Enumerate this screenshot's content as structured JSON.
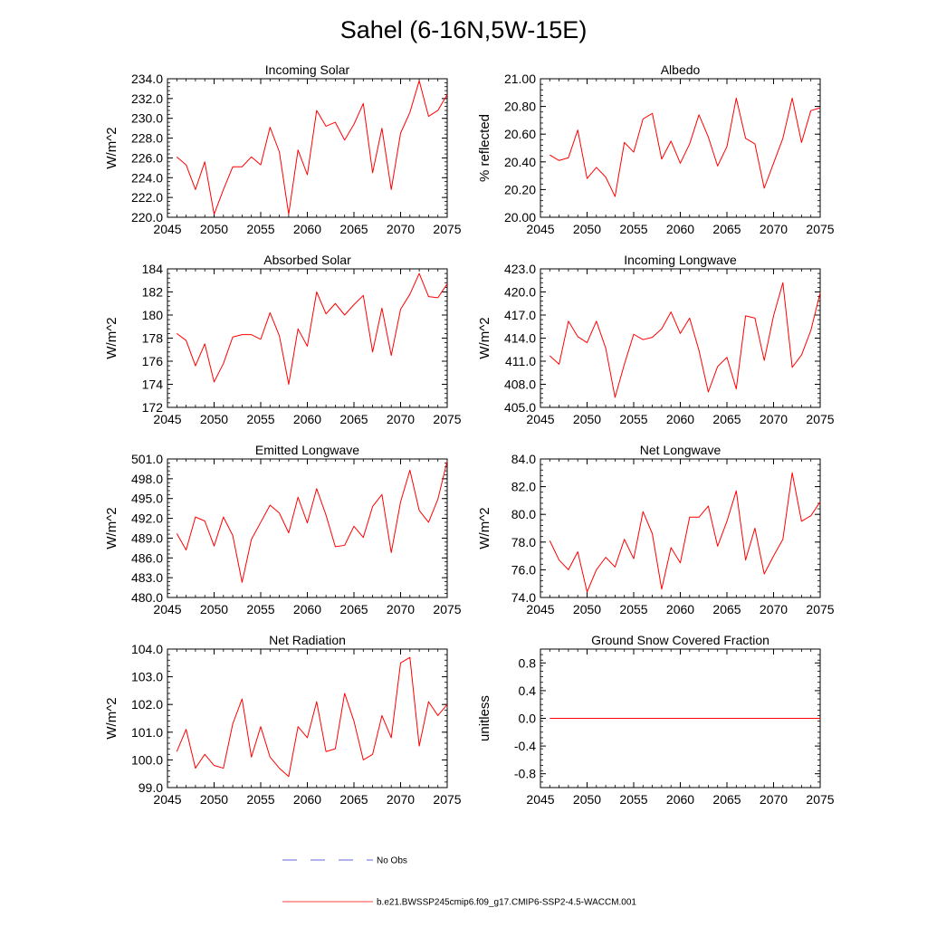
{
  "title": "Sahel (6-16N,5W-15E)",
  "colors": {
    "model": "#ff0000",
    "obs": "#3333cc",
    "axis": "#000000"
  },
  "legend": {
    "obs_label": "No Obs",
    "model_label": "b.e21.BWSSP245cmip6.f09_g17.CMIP6-SSP2-4.5-WACCM.001"
  },
  "chart_data": [
    {
      "type": "line",
      "title": "Incoming Solar",
      "xlabel": "",
      "ylabel": "W/m^2",
      "xlim": [
        2045,
        2075
      ],
      "ylim": [
        220,
        234
      ],
      "xticks": [
        2045,
        2050,
        2055,
        2060,
        2065,
        2070,
        2075
      ],
      "yticks": [
        220,
        222,
        224,
        226,
        228,
        230,
        232,
        234
      ],
      "ydec": 1,
      "x": [
        2046,
        2047,
        2048,
        2049,
        2050,
        2051,
        2052,
        2053,
        2054,
        2055,
        2056,
        2057,
        2058,
        2059,
        2060,
        2061,
        2062,
        2063,
        2064,
        2065,
        2066,
        2067,
        2068,
        2069,
        2070,
        2071,
        2072,
        2073,
        2074,
        2075
      ],
      "values": [
        226.1,
        225.3,
        222.8,
        225.6,
        220.3,
        222.8,
        225.1,
        225.1,
        226.1,
        225.3,
        229.1,
        226.6,
        220.3,
        226.8,
        224.3,
        230.8,
        229.2,
        229.6,
        227.8,
        229.4,
        231.5,
        224.5,
        229.0,
        222.8,
        228.5,
        230.6,
        233.8,
        230.2,
        230.8,
        232.4
      ]
    },
    {
      "type": "line",
      "title": "Albedo",
      "xlabel": "",
      "ylabel": "% reflected",
      "xlim": [
        2045,
        2075
      ],
      "ylim": [
        20.0,
        21.0
      ],
      "xticks": [
        2045,
        2050,
        2055,
        2060,
        2065,
        2070,
        2075
      ],
      "yticks": [
        20.0,
        20.2,
        20.4,
        20.6,
        20.8,
        21.0
      ],
      "ydec": 2,
      "x": [
        2046,
        2047,
        2048,
        2049,
        2050,
        2051,
        2052,
        2053,
        2054,
        2055,
        2056,
        2057,
        2058,
        2059,
        2060,
        2061,
        2062,
        2063,
        2064,
        2065,
        2066,
        2067,
        2068,
        2069,
        2070,
        2071,
        2072,
        2073,
        2074,
        2075
      ],
      "values": [
        20.45,
        20.41,
        20.43,
        20.63,
        20.28,
        20.36,
        20.29,
        20.15,
        20.54,
        20.47,
        20.71,
        20.75,
        20.42,
        20.55,
        20.39,
        20.53,
        20.74,
        20.58,
        20.37,
        20.51,
        20.86,
        20.57,
        20.53,
        20.21,
        20.39,
        20.57,
        20.86,
        20.54,
        20.77,
        20.79
      ]
    },
    {
      "type": "line",
      "title": "Absorbed Solar",
      "xlabel": "",
      "ylabel": "W/m^2",
      "xlim": [
        2045,
        2075
      ],
      "ylim": [
        172,
        184
      ],
      "xticks": [
        2045,
        2050,
        2055,
        2060,
        2065,
        2070,
        2075
      ],
      "yticks": [
        172,
        174,
        176,
        178,
        180,
        182,
        184
      ],
      "ydec": 0,
      "x": [
        2046,
        2047,
        2048,
        2049,
        2050,
        2051,
        2052,
        2053,
        2054,
        2055,
        2056,
        2057,
        2058,
        2059,
        2060,
        2061,
        2062,
        2063,
        2064,
        2065,
        2066,
        2067,
        2068,
        2069,
        2070,
        2071,
        2072,
        2073,
        2074,
        2075
      ],
      "values": [
        178.4,
        177.8,
        175.6,
        177.5,
        174.2,
        175.8,
        178.1,
        178.3,
        178.3,
        177.9,
        180.2,
        178.2,
        174.0,
        178.8,
        177.3,
        182.0,
        180.1,
        181.0,
        180.0,
        180.9,
        181.7,
        176.8,
        180.6,
        176.5,
        180.5,
        181.8,
        183.6,
        181.6,
        181.5,
        182.7
      ]
    },
    {
      "type": "line",
      "title": "Incoming Longwave",
      "xlabel": "",
      "ylabel": "W/m^2",
      "xlim": [
        2045,
        2075
      ],
      "ylim": [
        405,
        423
      ],
      "xticks": [
        2045,
        2050,
        2055,
        2060,
        2065,
        2070,
        2075
      ],
      "yticks": [
        405,
        408,
        411,
        414,
        417,
        420,
        423
      ],
      "ydec": 1,
      "x": [
        2046,
        2047,
        2048,
        2049,
        2050,
        2051,
        2052,
        2053,
        2054,
        2055,
        2056,
        2057,
        2058,
        2059,
        2060,
        2061,
        2062,
        2063,
        2064,
        2065,
        2066,
        2067,
        2068,
        2069,
        2070,
        2071,
        2072,
        2073,
        2074,
        2075
      ],
      "values": [
        411.7,
        410.6,
        416.2,
        414.2,
        413.4,
        416.2,
        412.7,
        406.3,
        410.6,
        414.5,
        413.8,
        414.1,
        415.2,
        417.4,
        414.6,
        416.6,
        412.4,
        407.0,
        410.3,
        411.5,
        407.4,
        416.9,
        416.6,
        411.1,
        416.9,
        421.2,
        410.2,
        411.8,
        415.0,
        419.9
      ]
    },
    {
      "type": "line",
      "title": "Emitted Longwave",
      "xlabel": "",
      "ylabel": "W/m^2",
      "xlim": [
        2045,
        2075
      ],
      "ylim": [
        480,
        501
      ],
      "xticks": [
        2045,
        2050,
        2055,
        2060,
        2065,
        2070,
        2075
      ],
      "yticks": [
        480,
        483,
        486,
        489,
        492,
        495,
        498,
        501
      ],
      "ydec": 1,
      "x": [
        2046,
        2047,
        2048,
        2049,
        2050,
        2051,
        2052,
        2053,
        2054,
        2055,
        2056,
        2057,
        2058,
        2059,
        2060,
        2061,
        2062,
        2063,
        2064,
        2065,
        2066,
        2067,
        2068,
        2069,
        2070,
        2071,
        2072,
        2073,
        2074,
        2075
      ],
      "values": [
        489.7,
        487.2,
        492.2,
        491.6,
        487.8,
        492.2,
        489.4,
        482.3,
        488.8,
        491.4,
        494.0,
        492.8,
        489.8,
        495.2,
        491.3,
        496.5,
        492.5,
        487.7,
        487.9,
        490.8,
        489.1,
        493.8,
        495.6,
        486.8,
        494.5,
        499.3,
        493.2,
        491.4,
        494.9,
        500.7
      ]
    },
    {
      "type": "line",
      "title": "Net Longwave",
      "xlabel": "",
      "ylabel": "W/m^2",
      "xlim": [
        2045,
        2075
      ],
      "ylim": [
        74,
        84
      ],
      "xticks": [
        2045,
        2050,
        2055,
        2060,
        2065,
        2070,
        2075
      ],
      "yticks": [
        74,
        76,
        78,
        80,
        82,
        84
      ],
      "ydec": 1,
      "x": [
        2046,
        2047,
        2048,
        2049,
        2050,
        2051,
        2052,
        2053,
        2054,
        2055,
        2056,
        2057,
        2058,
        2059,
        2060,
        2061,
        2062,
        2063,
        2064,
        2065,
        2066,
        2067,
        2068,
        2069,
        2070,
        2071,
        2072,
        2073,
        2074,
        2075
      ],
      "values": [
        78.1,
        76.7,
        76.0,
        77.3,
        74.4,
        76.0,
        76.9,
        76.2,
        78.2,
        76.8,
        80.2,
        78.6,
        74.6,
        77.6,
        76.5,
        79.8,
        79.8,
        80.6,
        77.7,
        79.5,
        81.7,
        76.7,
        79.0,
        75.7,
        77.0,
        78.2,
        83.0,
        79.5,
        79.9,
        80.9
      ]
    },
    {
      "type": "line",
      "title": "Net Radiation",
      "xlabel": "",
      "ylabel": "W/m^2",
      "xlim": [
        2045,
        2075
      ],
      "ylim": [
        99,
        104
      ],
      "xticks": [
        2045,
        2050,
        2055,
        2060,
        2065,
        2070,
        2075
      ],
      "yticks": [
        99,
        100,
        101,
        102,
        103,
        104
      ],
      "ydec": 1,
      "x": [
        2046,
        2047,
        2048,
        2049,
        2050,
        2051,
        2052,
        2053,
        2054,
        2055,
        2056,
        2057,
        2058,
        2059,
        2060,
        2061,
        2062,
        2063,
        2064,
        2065,
        2066,
        2067,
        2068,
        2069,
        2070,
        2071,
        2072,
        2073,
        2074,
        2075
      ],
      "values": [
        100.3,
        101.1,
        99.7,
        100.2,
        99.8,
        99.7,
        101.3,
        102.2,
        100.1,
        101.2,
        100.1,
        99.7,
        99.4,
        101.2,
        100.8,
        102.1,
        100.3,
        100.4,
        102.4,
        101.4,
        100.0,
        100.2,
        101.6,
        100.8,
        103.5,
        103.7,
        100.5,
        102.1,
        101.6,
        102.0
      ]
    },
    {
      "type": "line",
      "title": "Ground Snow Covered Fraction",
      "xlabel": "",
      "ylabel": "unitless",
      "xlim": [
        2045,
        2075
      ],
      "ylim": [
        -1.0,
        1.0
      ],
      "xticks": [
        2045,
        2050,
        2055,
        2060,
        2065,
        2070,
        2075
      ],
      "yticks": [
        -0.8,
        -0.4,
        0.0,
        0.4,
        0.8
      ],
      "ydec": 1,
      "x": [
        2046,
        2047,
        2048,
        2049,
        2050,
        2051,
        2052,
        2053,
        2054,
        2055,
        2056,
        2057,
        2058,
        2059,
        2060,
        2061,
        2062,
        2063,
        2064,
        2065,
        2066,
        2067,
        2068,
        2069,
        2070,
        2071,
        2072,
        2073,
        2074,
        2075
      ],
      "values": [
        0,
        0,
        0,
        0,
        0,
        0,
        0,
        0,
        0,
        0,
        0,
        0,
        0,
        0,
        0,
        0,
        0,
        0,
        0,
        0,
        0,
        0,
        0,
        0,
        0,
        0,
        0,
        0,
        0,
        0
      ]
    }
  ]
}
